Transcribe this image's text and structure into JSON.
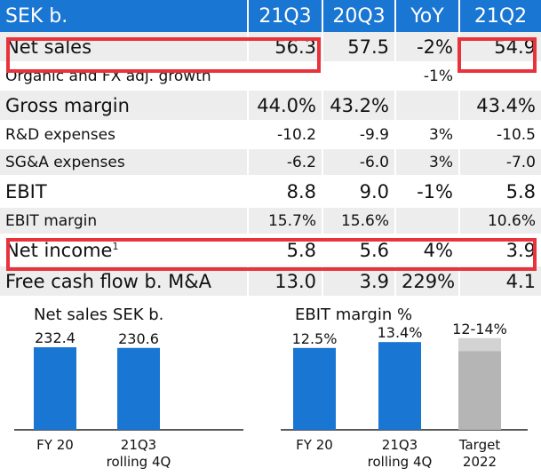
{
  "colors": {
    "header_bg": "#1976d2",
    "bar": "#1976d2",
    "highlight": "#e8323c",
    "row_shade": "#ededed",
    "target_light": "#d3d3d3",
    "target_dark": "#b5b5b5"
  },
  "table": {
    "header": [
      "SEK b.",
      "21Q3",
      "20Q3",
      "YoY",
      "21Q2"
    ],
    "rows": [
      {
        "label": "Net sales",
        "sup": "",
        "cells": [
          "56.3",
          "57.5",
          "-2%",
          "54.9"
        ]
      },
      {
        "label": "Organic and FX adj. growth",
        "sup": "",
        "cells": [
          "",
          "",
          "-1%",
          ""
        ]
      },
      {
        "label": "Gross margin",
        "sup": "",
        "cells": [
          "44.0%",
          "43.2%",
          "",
          "43.4%"
        ]
      },
      {
        "label": "R&D expenses",
        "sup": "",
        "cells": [
          "-10.2",
          "-9.9",
          "3%",
          "-10.5"
        ]
      },
      {
        "label": "SG&A expenses",
        "sup": "",
        "cells": [
          "-6.2",
          "-6.0",
          "3%",
          "-7.0"
        ]
      },
      {
        "label": "EBIT",
        "sup": "",
        "cells": [
          "8.8",
          "9.0",
          "-1%",
          "5.8"
        ]
      },
      {
        "label": "EBIT margin",
        "sup": "",
        "cells": [
          "15.7%",
          "15.6%",
          "",
          "10.6%"
        ]
      },
      {
        "label": "Net income",
        "sup": "1",
        "cells": [
          "5.8",
          "5.6",
          "4%",
          "3.9"
        ]
      },
      {
        "label": "Free cash flow b. M&A",
        "sup": "",
        "cells": [
          "13.0",
          "3.9",
          "229%",
          "4.1"
        ]
      }
    ]
  },
  "chart_data": [
    {
      "type": "bar",
      "title": "Net sales SEK b.",
      "categories": [
        [
          "FY 20"
        ],
        [
          "21Q3",
          "rolling 4Q"
        ]
      ],
      "values": [
        232.4,
        230.6
      ],
      "value_labels": [
        "232.4",
        "230.6"
      ],
      "ylim": [
        0,
        295
      ]
    },
    {
      "type": "bar",
      "title": "EBIT margin %",
      "categories": [
        [
          "FY 20"
        ],
        [
          "21Q3",
          "rolling 4Q"
        ],
        [
          "Target",
          "2022"
        ]
      ],
      "values": [
        12.5,
        13.4,
        null
      ],
      "target_range": [
        12,
        14
      ],
      "value_labels": [
        "12.5%",
        "13.4%",
        "12-14%"
      ],
      "ylim": [
        0,
        16
      ]
    }
  ]
}
